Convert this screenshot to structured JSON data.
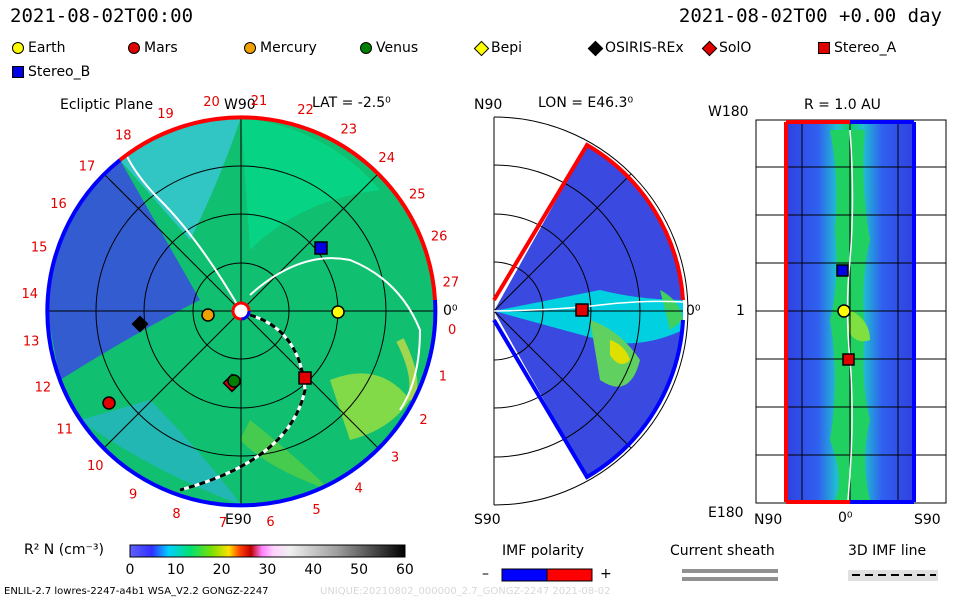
{
  "header": {
    "date_left": "2021-08-02T00:00",
    "date_right": "2021-08-02T00 +0.00 day"
  },
  "legend": [
    {
      "label": "Earth",
      "color": "#ffff00",
      "shape": "circle"
    },
    {
      "label": "Mars",
      "color": "#e00000",
      "shape": "circle"
    },
    {
      "label": "Mercury",
      "color": "#f0a000",
      "shape": "circle"
    },
    {
      "label": "Venus",
      "color": "#008000",
      "shape": "circle"
    },
    {
      "label": "Bepi",
      "color": "#ffff00",
      "shape": "diamond"
    },
    {
      "label": "OSIRIS-REx",
      "color": "#000000",
      "shape": "diamond"
    },
    {
      "label": "SolO",
      "color": "#e00000",
      "shape": "diamond"
    },
    {
      "label": "Stereo_A",
      "color": "#e00000",
      "shape": "square"
    },
    {
      "label": "Stereo_B",
      "color": "#0000e0",
      "shape": "square"
    }
  ],
  "panels": {
    "ecliptic": {
      "title": "Ecliptic Plane",
      "lat_label": "LAT = -2.5⁰",
      "top_label": "W90",
      "bottom_label": "E90",
      "right_label": "0⁰",
      "carrington_ticks": [
        "20",
        "21",
        "22",
        "23",
        "24",
        "25",
        "26",
        "27",
        "0",
        "1",
        "2",
        "3",
        "4",
        "5",
        "6",
        "7",
        "8",
        "9",
        "10",
        "11",
        "12",
        "13",
        "14",
        "15",
        "16",
        "17",
        "18",
        "19"
      ]
    },
    "meridional": {
      "top_label": "N90",
      "lon_label": "LON = E46.3⁰",
      "bottom_label": "S90",
      "right_label": "0⁰"
    },
    "radial": {
      "title": "R = 1.0 AU",
      "top_label": "W180",
      "left_mid_label": "1",
      "bottom_left_label": "E180",
      "x_labels": [
        "N90",
        "0⁰",
        "S90"
      ]
    }
  },
  "colorbar": {
    "label": "R² N (cm⁻³)",
    "ticks": [
      "0",
      "10",
      "20",
      "30",
      "40",
      "50",
      "60"
    ]
  },
  "imf": {
    "title": "IMF polarity",
    "minus": "–",
    "plus": "+",
    "neg_color": "#0000ff",
    "pos_color": "#ff0000"
  },
  "current_sheath": {
    "title": "Current sheath"
  },
  "imf_line": {
    "title": "3D IMF line"
  },
  "footer": {
    "left": "ENLIL-2.7 lowres-2247-a4b1 WSA_V2.2 GONGZ-2247",
    "right": "UNIQUE:20210802_000000_2.7_GONGZ-2247  2021-08-02"
  },
  "chart_data": [
    {
      "type": "heatmap",
      "title": "Ecliptic Plane",
      "quantity": "R² N (cm⁻³)",
      "scale": [
        0,
        60
      ],
      "bodies": [
        "Earth",
        "Mars",
        "Mercury",
        "Venus",
        "OSIRIS-REx",
        "SolO",
        "Stereo_A",
        "Stereo_B"
      ]
    },
    {
      "type": "heatmap",
      "title": "LON = E46.3⁰",
      "quantity": "R² N (cm⁻³)",
      "bodies": [
        "Stereo_A"
      ]
    },
    {
      "type": "heatmap",
      "title": "R = 1.0 AU",
      "quantity": "R² N (cm⁻³)",
      "bodies": [
        "Earth",
        "Stereo_A",
        "Stereo_B"
      ]
    }
  ]
}
